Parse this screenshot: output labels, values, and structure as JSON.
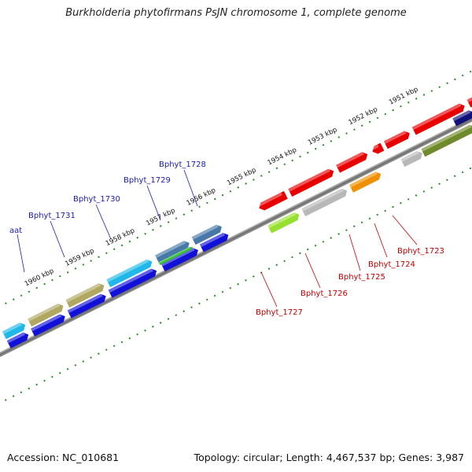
{
  "title": "Burkholderia phytofirmans PsJN chromosome 1, complete genome",
  "footer": {
    "accession": "Accession: NC_010681",
    "summary": "Topology: circular; Length: 4,467,537 bp; Genes: 3,987"
  },
  "ruler": [
    "1951 kbp",
    "1952 kbp",
    "1953 kbp",
    "1954 kbp",
    "1955 kbp",
    "1956 kbp",
    "1957 kbp",
    "1958 kbp",
    "1959 kbp",
    "1960 kbp"
  ],
  "colors": {
    "red": "#e80000",
    "grey": "#b8b8b8",
    "orange": "#f09000",
    "olive": "#6e8a2a",
    "khaki": "#b0a860",
    "cyan": "#20b8e8",
    "blue": "#1010d8",
    "steel": "#4878a8",
    "green": "#38c038",
    "lime": "#98e030",
    "navy": "#10107a"
  },
  "genes_top": [
    {
      "name": "aat"
    },
    {
      "name": "Bphyt_1731"
    },
    {
      "name": "Bphyt_1730"
    },
    {
      "name": "Bphyt_1729"
    },
    {
      "name": "Bphyt_1728"
    }
  ],
  "genes_bottom": [
    {
      "name": "Bphyt_1727"
    },
    {
      "name": "Bphyt_1726"
    },
    {
      "name": "Bphyt_1725"
    },
    {
      "name": "Bphyt_1724"
    },
    {
      "name": "Bphyt_1723"
    }
  ]
}
